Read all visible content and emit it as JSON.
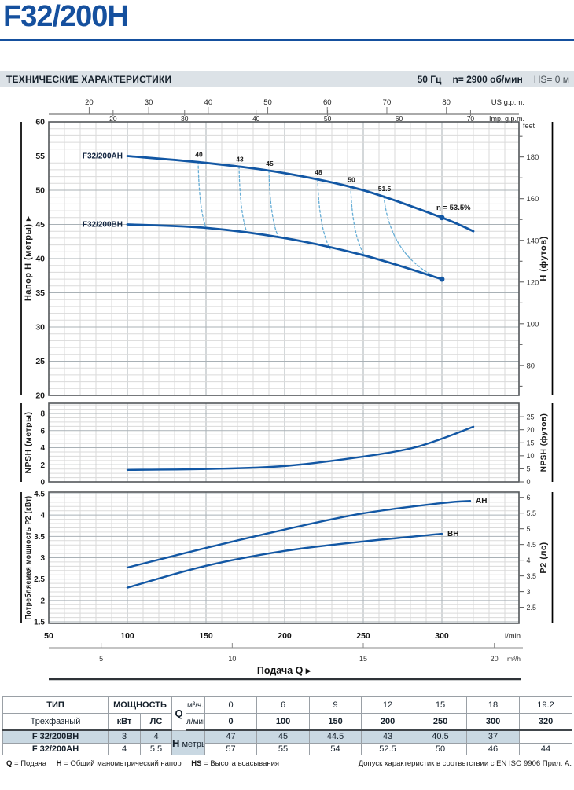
{
  "page": {
    "title": "F32/200H",
    "section_header": "ТЕХНИЧЕСКИЕ ХАРАКТЕРИСТИКИ",
    "frequency": "50 Гц",
    "speed": "n= 2900 об/мин",
    "suction": "HS= 0 м"
  },
  "colors": {
    "brand_blue": "#15509e",
    "curve_blue": "#1257a4",
    "efficiency_dash": "#67aed6",
    "grid_minor": "#dadada",
    "grid_major": "#a9b1b6",
    "plot_border": "#53575a",
    "axis_gray": "#777777",
    "row_highlight": "#c9d8e2"
  },
  "flow_axis": {
    "xlabel": "Подача Q ▸",
    "lmin_ticks": [
      50,
      100,
      150,
      200,
      250,
      300
    ],
    "lmin_unit": "l/min",
    "m3h_ticks": [
      5,
      10,
      15,
      20
    ],
    "m3h_unit": "m³/h",
    "us_gpm_ticks": [
      20,
      30,
      40,
      50,
      60,
      70,
      80
    ],
    "us_gpm_unit": "US g.p.m.",
    "imp_gpm_ticks": [
      20,
      30,
      40,
      50,
      60,
      70
    ],
    "imp_gpm_unit": "Imp. g.p.m.",
    "feet_note": "feet",
    "xlim_lmin": [
      50,
      349
    ]
  },
  "chart_data": [
    {
      "type": "line",
      "id": "head_curves",
      "ylabel_left": "Напор H (метры) ▸",
      "ylabel_right": "H (футов)",
      "ylim_m": [
        20,
        60
      ],
      "yticks_m": [
        20,
        25,
        30,
        35,
        40,
        45,
        50,
        55,
        60
      ],
      "yticks_ft_labeled": [
        80,
        100,
        120,
        140,
        160,
        180
      ],
      "series": [
        {
          "name": "F32/200AH",
          "points": [
            [
              100,
              55
            ],
            [
              150,
              54
            ],
            [
              200,
              52.5
            ],
            [
              250,
              50
            ],
            [
              300,
              46
            ],
            [
              320,
              44
            ]
          ],
          "marker": [
            300,
            46
          ]
        },
        {
          "name": "F32/200BH",
          "points": [
            [
              100,
              45
            ],
            [
              150,
              44.5
            ],
            [
              200,
              43
            ],
            [
              250,
              40.5
            ],
            [
              300,
              37
            ]
          ],
          "marker": [
            300,
            37
          ]
        }
      ],
      "efficiency_lines": [
        {
          "label": "40",
          "from": [
            145,
            54.2
          ],
          "to": [
            150,
            44.5
          ]
        },
        {
          "label": "43",
          "from": [
            171,
            53.5
          ],
          "to": [
            176,
            43.85
          ]
        },
        {
          "label": "45",
          "from": [
            190,
            52.9
          ],
          "to": [
            196,
            43.15
          ]
        },
        {
          "label": "48",
          "from": [
            221,
            51.6
          ],
          "to": [
            229,
            41.4
          ]
        },
        {
          "label": "50",
          "from": [
            242,
            50.5
          ],
          "to": [
            251,
            40.4
          ]
        },
        {
          "label": "51.5",
          "from": [
            263,
            49.2
          ],
          "to": [
            296,
            37.3
          ]
        }
      ],
      "best_efficiency_label": "η = 53.5%",
      "best_efficiency_point": [
        300,
        46
      ]
    },
    {
      "type": "line",
      "id": "npsh",
      "ylabel_left": "NPSH (метры)",
      "ylabel_right": "NPSH (футов)",
      "ylim_m": [
        0,
        9.2
      ],
      "yticks_m": [
        0,
        2,
        4,
        6,
        8
      ],
      "yticks_ft": [
        0,
        5,
        10,
        15,
        20,
        25
      ],
      "series": [
        {
          "name": "NPSH",
          "points": [
            [
              100,
              1.4
            ],
            [
              150,
              1.5
            ],
            [
              200,
              1.85
            ],
            [
              250,
              2.95
            ],
            [
              280,
              3.9
            ],
            [
              300,
              5.05
            ],
            [
              320,
              6.45
            ]
          ]
        }
      ]
    },
    {
      "type": "line",
      "id": "power",
      "ylabel_left": "Потребляемая мощность P2 (кВт)",
      "ylabel_right": "P2 (лс)",
      "ylim_kw": [
        1.5,
        4.54
      ],
      "yticks_kw": [
        1.5,
        2,
        2.5,
        3,
        3.5,
        4,
        4.5
      ],
      "yticks_hp": [
        2.5,
        3,
        3.5,
        4,
        4.5,
        5,
        5.5,
        6
      ],
      "series": [
        {
          "name": "AH",
          "points": [
            [
              100,
              2.77
            ],
            [
              150,
              3.23
            ],
            [
              200,
              3.66
            ],
            [
              250,
              4.04
            ],
            [
              300,
              4.28
            ],
            [
              318,
              4.33
            ]
          ]
        },
        {
          "name": "BH",
          "points": [
            [
              100,
              2.3
            ],
            [
              150,
              2.81
            ],
            [
              200,
              3.16
            ],
            [
              250,
              3.38
            ],
            [
              300,
              3.56
            ]
          ]
        }
      ]
    }
  ],
  "table": {
    "type_header": "ТИП",
    "type_sub": "Трехфазный",
    "power_header": "МОЩНОСТЬ",
    "power_units": [
      "кВт",
      "ЛС"
    ],
    "q_label": "Q",
    "q_rows": [
      {
        "unit": "м³/ч.",
        "values": [
          "0",
          "6",
          "9",
          "12",
          "15",
          "18",
          "19.2"
        ]
      },
      {
        "unit": "л/мин.",
        "values": [
          "0",
          "100",
          "150",
          "200",
          "250",
          "300",
          "320"
        ]
      }
    ],
    "h_label": "H",
    "h_unit": "метры",
    "rows": [
      {
        "type": "F 32/200BH",
        "kw": "3",
        "hp": "4",
        "values": [
          "47",
          "45",
          "44.5",
          "43",
          "40.5",
          "37",
          ""
        ]
      },
      {
        "type": "F 32/200AH",
        "kw": "4",
        "hp": "5.5",
        "values": [
          "57",
          "55",
          "54",
          "52.5",
          "50",
          "46",
          "44"
        ]
      }
    ]
  },
  "footer": {
    "legend": [
      {
        "k": "Q",
        "d": "= Подача"
      },
      {
        "k": "H",
        "d": "= Общий манометрический напор"
      },
      {
        "k": "HS",
        "d": "= Высота всасывания"
      }
    ],
    "note": "Допуск характеристик в соответствии с EN ISO 9906 Прил. А."
  }
}
